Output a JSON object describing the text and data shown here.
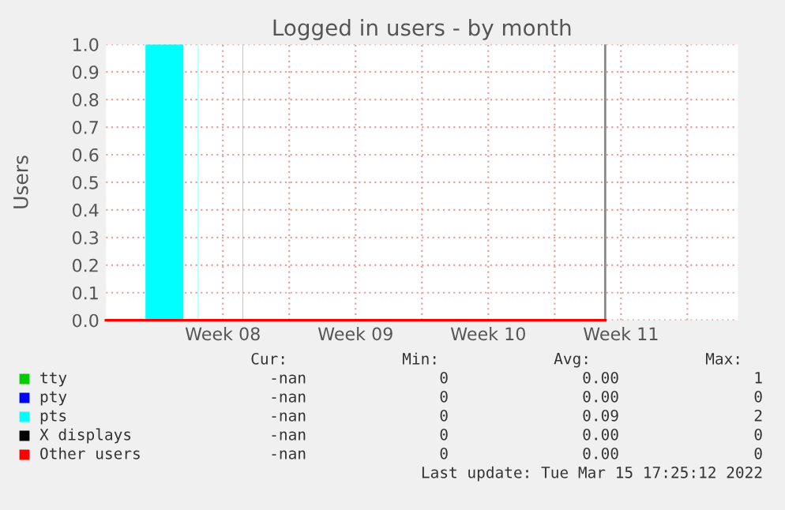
{
  "chart_data": {
    "type": "area",
    "title": "Logged in users - by month",
    "ylabel": "Users",
    "xlim": [
      "2022-02-18T08:00",
      "2022-03-23T16:00"
    ],
    "xticks": [
      {
        "value": "2022-02-21T00:00",
        "label": null
      },
      {
        "value": "2022-02-24T12:00",
        "label": "Week 08"
      },
      {
        "value": "2022-02-28T00:00",
        "label": null
      },
      {
        "value": "2022-03-03T12:00",
        "label": "Week 09"
      },
      {
        "value": "2022-03-07T00:00",
        "label": null
      },
      {
        "value": "2022-03-10T12:00",
        "label": "Week 10"
      },
      {
        "value": "2022-03-14T00:00",
        "label": null
      },
      {
        "value": "2022-03-17T12:00",
        "label": "Week 11"
      },
      {
        "value": "2022-03-21T00:00",
        "label": null
      }
    ],
    "ylim": [
      0,
      1
    ],
    "yticks": [
      {
        "value": 0,
        "label": "0.0"
      },
      0.1,
      0.2,
      0.3,
      0.4,
      0.5,
      0.6,
      0.7,
      0.8,
      0.9,
      {
        "value": 1,
        "label": "1.0"
      }
    ],
    "grid": true,
    "legend": "bottom",
    "series": [
      {
        "name": "tty",
        "color": "#00cc00"
      },
      {
        "name": "pty",
        "color": "#0000ff"
      },
      {
        "name": "pts",
        "color": "#00ffff",
        "x": [
          "2022-02-18T08:00",
          "2022-02-20T10:00",
          "2022-02-22T10:00",
          "2022-02-23T04:30",
          "2022-02-23T05:00",
          "2022-02-25T13:00",
          "2022-02-25T13:45",
          "2022-03-16T16:00"
        ],
        "values": [
          0,
          1,
          0,
          1,
          0,
          1,
          0,
          0
        ]
      },
      {
        "name": "X displays",
        "color": "#000000"
      },
      {
        "name": "Other users",
        "color": "#ff0000",
        "type": "line",
        "x": [
          "2022-02-18T08:00",
          "2022-03-16T16:00"
        ],
        "values": [
          0,
          0
        ]
      }
    ],
    "ref_lines": [
      {
        "axis": "x",
        "value": "2022-03-16T16:00",
        "color": "#888888"
      }
    ],
    "annotations": [
      "Cur:",
      "Min:",
      "Avg:",
      "Max:",
      "-nan",
      "0",
      "0.00",
      "1",
      "-nan",
      "0",
      "0.00",
      "0",
      "-nan",
      "0",
      "0.09",
      "2",
      "-nan",
      "0",
      "0.00",
      "0",
      "-nan",
      "0",
      "0.00",
      "0",
      "Last update: Tue Mar 15 17:25:12 2022"
    ]
  }
}
